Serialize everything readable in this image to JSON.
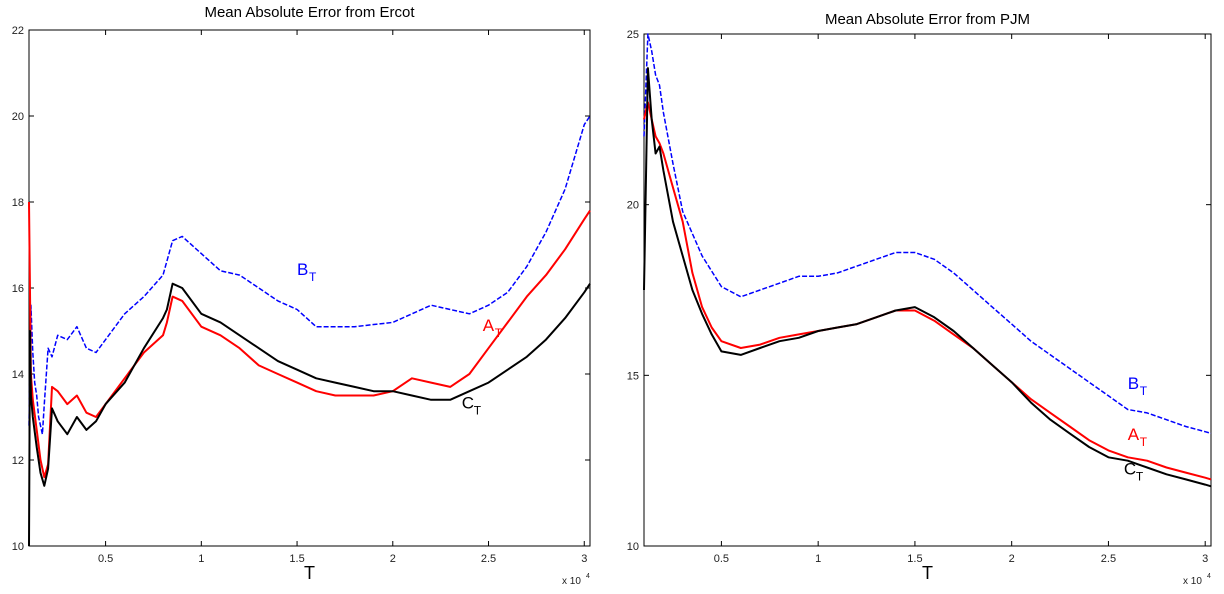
{
  "chart_data": [
    {
      "type": "line",
      "title": "Mean Absolute Error from Ercot",
      "xlabel": "T",
      "ylabel": "",
      "x_multiplier": "x 10",
      "x_multiplier_exp": "4",
      "xlim": [
        0.1,
        3.03
      ],
      "ylim": [
        10,
        22
      ],
      "xticks": [
        0.5,
        1,
        1.5,
        2,
        2.5,
        3
      ],
      "yticks": [
        10,
        12,
        14,
        16,
        18,
        20,
        22
      ],
      "series": [
        {
          "name": "B",
          "subscript": "T",
          "color": "#0000ff",
          "dash": true,
          "label_at": [
            1.5,
            16.3
          ],
          "x": [
            0.1,
            0.11,
            0.12,
            0.13,
            0.14,
            0.15,
            0.17,
            0.18,
            0.2,
            0.22,
            0.25,
            0.3,
            0.35,
            0.4,
            0.45,
            0.5,
            0.6,
            0.7,
            0.8,
            0.85,
            0.9,
            1.0,
            1.1,
            1.2,
            1.3,
            1.4,
            1.5,
            1.6,
            1.8,
            2.0,
            2.2,
            2.4,
            2.5,
            2.6,
            2.7,
            2.8,
            2.9,
            3.0,
            3.03
          ],
          "y": [
            12.8,
            15.6,
            14.5,
            13.8,
            13.5,
            13.0,
            12.6,
            13.3,
            14.6,
            14.4,
            14.9,
            14.8,
            15.1,
            14.6,
            14.5,
            14.8,
            15.4,
            15.8,
            16.3,
            17.1,
            17.2,
            16.8,
            16.4,
            16.3,
            16.0,
            15.7,
            15.5,
            15.1,
            15.1,
            15.2,
            15.6,
            15.4,
            15.6,
            15.9,
            16.5,
            17.3,
            18.3,
            19.8,
            20.0
          ]
        },
        {
          "name": "A",
          "subscript": "T",
          "color": "#ff0000",
          "dash": false,
          "label_at": [
            2.47,
            15.0
          ],
          "x": [
            0.1,
            0.11,
            0.12,
            0.14,
            0.16,
            0.18,
            0.2,
            0.22,
            0.25,
            0.3,
            0.35,
            0.4,
            0.45,
            0.5,
            0.6,
            0.7,
            0.8,
            0.82,
            0.85,
            0.9,
            1.0,
            1.1,
            1.2,
            1.3,
            1.4,
            1.5,
            1.6,
            1.7,
            1.8,
            1.9,
            2.0,
            2.1,
            2.2,
            2.3,
            2.4,
            2.5,
            2.6,
            2.7,
            2.8,
            2.9,
            3.0,
            3.03
          ],
          "y": [
            18.0,
            14.0,
            13.4,
            12.7,
            12.0,
            11.6,
            11.9,
            13.7,
            13.6,
            13.3,
            13.5,
            13.1,
            13.0,
            13.3,
            13.9,
            14.5,
            14.9,
            15.2,
            15.8,
            15.7,
            15.1,
            14.9,
            14.6,
            14.2,
            14.0,
            13.8,
            13.6,
            13.5,
            13.5,
            13.5,
            13.6,
            13.9,
            13.8,
            13.7,
            14.0,
            14.6,
            15.2,
            15.8,
            16.3,
            16.9,
            17.6,
            17.8
          ]
        },
        {
          "name": "C",
          "subscript": "T",
          "color": "#000000",
          "dash": false,
          "label_at": [
            2.36,
            13.2
          ],
          "x": [
            0.1,
            0.105,
            0.11,
            0.12,
            0.14,
            0.16,
            0.18,
            0.2,
            0.22,
            0.25,
            0.3,
            0.35,
            0.4,
            0.45,
            0.5,
            0.6,
            0.7,
            0.8,
            0.82,
            0.85,
            0.9,
            1.0,
            1.1,
            1.2,
            1.3,
            1.4,
            1.5,
            1.6,
            1.7,
            1.8,
            1.9,
            2.0,
            2.1,
            2.2,
            2.3,
            2.4,
            2.5,
            2.6,
            2.7,
            2.8,
            2.9,
            3.0,
            3.03
          ],
          "y": [
            10.0,
            15.0,
            13.5,
            13.0,
            12.3,
            11.7,
            11.4,
            11.8,
            13.2,
            12.9,
            12.6,
            13.0,
            12.7,
            12.9,
            13.3,
            13.8,
            14.6,
            15.3,
            15.5,
            16.1,
            16.0,
            15.4,
            15.2,
            14.9,
            14.6,
            14.3,
            14.1,
            13.9,
            13.8,
            13.7,
            13.6,
            13.6,
            13.5,
            13.4,
            13.4,
            13.6,
            13.8,
            14.1,
            14.4,
            14.8,
            15.3,
            15.9,
            16.1
          ]
        }
      ]
    },
    {
      "type": "line",
      "title": "Mean Absolute Error from PJM",
      "xlabel": "T",
      "ylabel": "",
      "x_multiplier": "x 10",
      "x_multiplier_exp": "4",
      "xlim": [
        0.1,
        3.03
      ],
      "ylim": [
        10,
        25
      ],
      "xticks": [
        0.5,
        1,
        1.5,
        2,
        2.5,
        3
      ],
      "yticks": [
        10,
        15,
        20,
        25
      ],
      "series": [
        {
          "name": "B",
          "subscript": "T",
          "color": "#0000ff",
          "dash": true,
          "label_at": [
            2.6,
            14.6
          ],
          "x": [
            0.1,
            0.12,
            0.14,
            0.16,
            0.18,
            0.2,
            0.25,
            0.3,
            0.4,
            0.5,
            0.6,
            0.7,
            0.8,
            0.9,
            1.0,
            1.1,
            1.2,
            1.3,
            1.4,
            1.5,
            1.6,
            1.7,
            1.8,
            1.9,
            2.0,
            2.1,
            2.2,
            2.3,
            2.4,
            2.5,
            2.6,
            2.7,
            2.8,
            2.9,
            3.0,
            3.03
          ],
          "y": [
            22.0,
            25.0,
            24.5,
            23.8,
            23.5,
            22.7,
            21.2,
            19.8,
            18.5,
            17.6,
            17.3,
            17.5,
            17.7,
            17.9,
            17.9,
            18.0,
            18.2,
            18.4,
            18.6,
            18.6,
            18.4,
            18.0,
            17.5,
            17.0,
            16.5,
            16.0,
            15.6,
            15.2,
            14.8,
            14.4,
            14.0,
            13.9,
            13.7,
            13.5,
            13.35,
            13.3
          ]
        },
        {
          "name": "A",
          "subscript": "T",
          "color": "#ff0000",
          "dash": false,
          "label_at": [
            2.6,
            13.1
          ],
          "x": [
            0.1,
            0.12,
            0.14,
            0.16,
            0.18,
            0.2,
            0.25,
            0.3,
            0.35,
            0.4,
            0.45,
            0.5,
            0.6,
            0.7,
            0.8,
            0.9,
            1.0,
            1.1,
            1.2,
            1.3,
            1.4,
            1.5,
            1.6,
            1.7,
            1.8,
            1.9,
            2.0,
            2.1,
            2.2,
            2.3,
            2.4,
            2.5,
            2.6,
            2.7,
            2.8,
            2.9,
            3.0,
            3.03
          ],
          "y": [
            22.5,
            23.0,
            22.5,
            22.0,
            21.8,
            21.5,
            20.5,
            19.5,
            18.0,
            17.0,
            16.4,
            16.0,
            15.8,
            15.9,
            16.1,
            16.2,
            16.3,
            16.4,
            16.5,
            16.7,
            16.9,
            16.9,
            16.6,
            16.2,
            15.8,
            15.3,
            14.8,
            14.3,
            13.9,
            13.5,
            13.1,
            12.8,
            12.6,
            12.5,
            12.3,
            12.15,
            12.0,
            11.95
          ]
        },
        {
          "name": "C",
          "subscript": "T",
          "color": "#000000",
          "dash": false,
          "label_at": [
            2.58,
            12.1
          ],
          "x": [
            0.1,
            0.12,
            0.14,
            0.16,
            0.18,
            0.2,
            0.25,
            0.3,
            0.35,
            0.4,
            0.45,
            0.5,
            0.6,
            0.7,
            0.8,
            0.9,
            1.0,
            1.1,
            1.2,
            1.3,
            1.4,
            1.5,
            1.6,
            1.7,
            1.8,
            1.9,
            2.0,
            2.1,
            2.2,
            2.3,
            2.4,
            2.5,
            2.6,
            2.7,
            2.8,
            2.9,
            3.0,
            3.03
          ],
          "y": [
            17.5,
            24.0,
            22.5,
            21.5,
            21.7,
            21.0,
            19.5,
            18.5,
            17.5,
            16.8,
            16.2,
            15.7,
            15.6,
            15.8,
            16.0,
            16.1,
            16.3,
            16.4,
            16.5,
            16.7,
            16.9,
            17.0,
            16.7,
            16.3,
            15.8,
            15.3,
            14.8,
            14.2,
            13.7,
            13.3,
            12.9,
            12.6,
            12.5,
            12.3,
            12.1,
            11.95,
            11.8,
            11.75
          ]
        }
      ]
    }
  ]
}
